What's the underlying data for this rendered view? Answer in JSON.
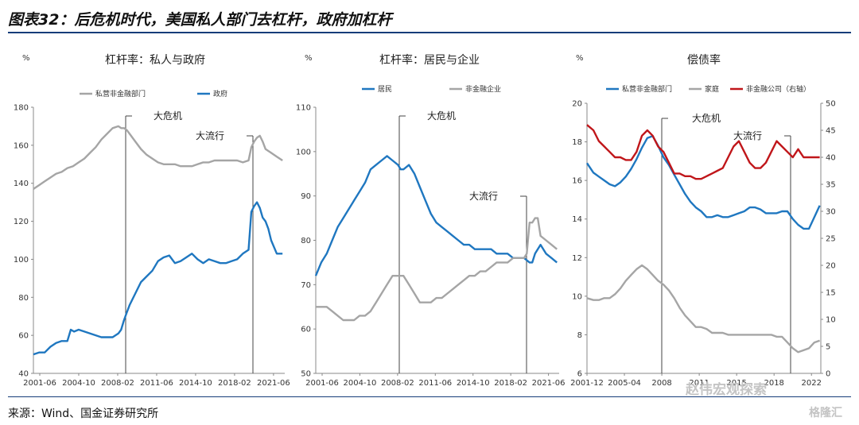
{
  "header": {
    "title": "图表32：后危机时代，美国私人部门去杠杆，政府加杠杆"
  },
  "footer": {
    "source": "来源：Wind、国金证券研究所"
  },
  "watermark": {
    "text1": "赵伟宏观探索",
    "text2": "格隆汇"
  },
  "colors": {
    "blue": "#1f77c0",
    "gray": "#a5a5a5",
    "red": "#c0161a",
    "rule": "#163d7a"
  },
  "chart_data": [
    {
      "type": "line",
      "title": "杠杆率：私人与政府",
      "unit": "%",
      "ylim": [
        40,
        180
      ],
      "yticks": [
        40,
        60,
        80,
        100,
        120,
        140,
        160,
        180
      ],
      "xticks": [
        "2001-06",
        "2004-10",
        "2008-02",
        "2011-06",
        "2014-10",
        "2018-02",
        "2021-06"
      ],
      "xlim": [
        2001.0,
        2023.2
      ],
      "legend_position": "top",
      "annotations": [
        {
          "text": "大危机",
          "x": 2008.6
        },
        {
          "text": "大流行",
          "x": 2020.1
        }
      ],
      "series": [
        {
          "name": "私营非金融部门",
          "color": "#a5a5a5",
          "x": [
            2001.0,
            2001.5,
            2002.0,
            2002.5,
            2003.0,
            2003.5,
            2004.0,
            2004.5,
            2005.0,
            2005.5,
            2006.0,
            2006.5,
            2007.0,
            2007.5,
            2008.0,
            2008.5,
            2008.75,
            2009.0,
            2009.25,
            2009.5,
            2010.0,
            2010.5,
            2011.0,
            2011.5,
            2012.0,
            2012.5,
            2013.0,
            2013.5,
            2014.0,
            2014.5,
            2015.0,
            2015.5,
            2016.0,
            2016.5,
            2017.0,
            2017.5,
            2018.0,
            2018.5,
            2019.0,
            2019.5,
            2020.0,
            2020.25,
            2020.5,
            2020.75,
            2021.0,
            2021.25,
            2021.5,
            2022.0,
            2022.5,
            2023.0
          ],
          "y": [
            137,
            139,
            141,
            143,
            145,
            146,
            148,
            149,
            151,
            153,
            156,
            159,
            163,
            166,
            169,
            170,
            169,
            169,
            168,
            166,
            162,
            158,
            155,
            153,
            151,
            150,
            150,
            150,
            149,
            149,
            149,
            150,
            151,
            151,
            152,
            152,
            152,
            152,
            152,
            151,
            152,
            159,
            162,
            164,
            165,
            162,
            158,
            156,
            154,
            152
          ]
        },
        {
          "name": "政府",
          "color": "#1f77c0",
          "x": [
            2001.0,
            2001.5,
            2002.0,
            2002.5,
            2003.0,
            2003.5,
            2004.0,
            2004.3,
            2004.6,
            2005.0,
            2005.5,
            2006.0,
            2006.5,
            2007.0,
            2007.5,
            2008.0,
            2008.5,
            2008.75,
            2009.0,
            2009.25,
            2009.5,
            2010.0,
            2010.5,
            2011.0,
            2011.5,
            2012.0,
            2012.5,
            2013.0,
            2013.5,
            2014.0,
            2014.5,
            2015.0,
            2015.5,
            2016.0,
            2016.5,
            2017.0,
            2017.5,
            2018.0,
            2018.5,
            2019.0,
            2019.5,
            2020.0,
            2020.25,
            2020.5,
            2020.75,
            2021.0,
            2021.25,
            2021.5,
            2021.75,
            2022.0,
            2022.5,
            2023.0
          ],
          "y": [
            50,
            51,
            51,
            54,
            56,
            57,
            57,
            63,
            62,
            63,
            62,
            61,
            60,
            59,
            59,
            59,
            61,
            63,
            68,
            72,
            76,
            82,
            88,
            91,
            94,
            99,
            101,
            102,
            98,
            99,
            101,
            103,
            100,
            98,
            100,
            99,
            98,
            98,
            99,
            100,
            103,
            105,
            125,
            128,
            130,
            127,
            122,
            120,
            116,
            110,
            103,
            103
          ]
        }
      ]
    },
    {
      "type": "line",
      "title": "杠杆率：居民与企业",
      "unit": "%",
      "ylim": [
        50,
        110
      ],
      "yticks": [
        50,
        60,
        70,
        80,
        90,
        100,
        110
      ],
      "xticks": [
        "2001-06",
        "2004-10",
        "2008-02",
        "2011-06",
        "2014-10",
        "2018-02",
        "2021-06"
      ],
      "xlim": [
        2001.0,
        2023.2
      ],
      "legend_position": "top",
      "annotations": [
        {
          "text": "大危机",
          "x": 2008.6
        },
        {
          "text": "大流行",
          "x": 2020.1
        }
      ],
      "series": [
        {
          "name": "居民",
          "color": "#1f77c0",
          "x": [
            2001.0,
            2001.5,
            2002.0,
            2002.5,
            2003.0,
            2003.5,
            2004.0,
            2004.5,
            2005.0,
            2005.5,
            2006.0,
            2006.5,
            2007.0,
            2007.5,
            2008.0,
            2008.5,
            2008.75,
            2009.0,
            2009.5,
            2010.0,
            2010.5,
            2011.0,
            2011.5,
            2012.0,
            2012.5,
            2013.0,
            2013.5,
            2014.0,
            2014.5,
            2015.0,
            2015.5,
            2016.0,
            2016.5,
            2017.0,
            2017.5,
            2018.0,
            2018.5,
            2019.0,
            2019.5,
            2020.0,
            2020.5,
            2020.75,
            2021.0,
            2021.25,
            2021.5,
            2022.0,
            2022.5,
            2023.0
          ],
          "y": [
            72,
            75,
            77,
            80,
            83,
            85,
            87,
            89,
            91,
            93,
            96,
            97,
            98,
            99,
            98,
            97,
            96,
            96,
            97,
            95,
            92,
            89,
            86,
            84,
            83,
            82,
            81,
            80,
            79,
            79,
            78,
            78,
            78,
            78,
            77,
            77,
            77,
            76,
            76,
            76,
            75,
            75,
            77,
            78,
            79,
            77,
            76,
            75
          ]
        },
        {
          "name": "非金融企业",
          "color": "#a5a5a5",
          "x": [
            2001.0,
            2001.5,
            2002.0,
            2002.5,
            2003.0,
            2003.5,
            2004.0,
            2004.5,
            2005.0,
            2005.5,
            2006.0,
            2006.5,
            2007.0,
            2007.5,
            2008.0,
            2008.5,
            2009.0,
            2009.5,
            2010.0,
            2010.5,
            2011.0,
            2011.5,
            2012.0,
            2012.5,
            2013.0,
            2013.5,
            2014.0,
            2014.5,
            2015.0,
            2015.5,
            2016.0,
            2016.5,
            2017.0,
            2017.5,
            2018.0,
            2018.5,
            2019.0,
            2019.5,
            2020.0,
            2020.25,
            2020.5,
            2020.75,
            2021.0,
            2021.25,
            2021.5,
            2022.0,
            2022.5,
            2023.0
          ],
          "y": [
            65,
            65,
            65,
            64,
            63,
            62,
            62,
            62,
            63,
            63,
            64,
            66,
            68,
            70,
            72,
            72,
            72,
            70,
            68,
            66,
            66,
            66,
            67,
            67,
            68,
            69,
            70,
            71,
            72,
            72,
            73,
            73,
            74,
            75,
            75,
            75,
            76,
            76,
            76,
            77,
            84,
            84,
            85,
            85,
            81,
            80,
            79,
            78
          ]
        }
      ]
    },
    {
      "type": "line",
      "title": "偿债率",
      "unit": "%",
      "ylim": [
        6,
        20
      ],
      "yticks": [
        6,
        8,
        10,
        12,
        14,
        16,
        18,
        20
      ],
      "ylim_right": [
        0,
        50
      ],
      "yticks_right": [
        0,
        5,
        10,
        15,
        20,
        25,
        30,
        35,
        40,
        45,
        50
      ],
      "xticks": [
        "2001-12",
        "2005-04",
        "2008",
        "2011",
        "2015",
        "2018",
        "2022"
      ],
      "xlim": [
        2001.9,
        2023.6
      ],
      "legend_position": "top",
      "annotations": [
        {
          "text": "大危机",
          "x": 2008.6
        },
        {
          "text": "大流行",
          "x": 2020.1
        }
      ],
      "series": [
        {
          "name": "私营非金融部门",
          "color": "#1f77c0",
          "axis": "left",
          "x": [
            2001.9,
            2002.5,
            2003.0,
            2003.5,
            2004.0,
            2004.5,
            2005.0,
            2005.5,
            2006.0,
            2006.5,
            2007.0,
            2007.5,
            2008.0,
            2008.5,
            2009.0,
            2009.5,
            2010.0,
            2010.5,
            2011.0,
            2011.5,
            2012.0,
            2012.5,
            2013.0,
            2013.5,
            2014.0,
            2014.5,
            2015.0,
            2015.5,
            2016.0,
            2016.5,
            2017.0,
            2017.5,
            2018.0,
            2018.5,
            2019.0,
            2019.5,
            2020.0,
            2020.5,
            2021.0,
            2021.5,
            2022.0,
            2022.5,
            2023.0,
            2023.5
          ],
          "y": [
            16.9,
            16.4,
            16.2,
            16.0,
            15.8,
            15.7,
            15.9,
            16.2,
            16.6,
            17.1,
            17.7,
            18.2,
            18.3,
            17.8,
            17.2,
            16.8,
            16.3,
            15.8,
            15.3,
            14.9,
            14.6,
            14.4,
            14.1,
            14.1,
            14.2,
            14.1,
            14.1,
            14.2,
            14.3,
            14.4,
            14.6,
            14.6,
            14.5,
            14.3,
            14.3,
            14.3,
            14.4,
            14.4,
            14.0,
            13.7,
            13.5,
            13.5,
            14.1,
            14.7
          ]
        },
        {
          "name": "家庭",
          "color": "#a5a5a5",
          "axis": "left",
          "x": [
            2001.9,
            2002.5,
            2003.0,
            2003.5,
            2004.0,
            2004.5,
            2005.0,
            2005.5,
            2006.0,
            2006.5,
            2007.0,
            2007.5,
            2008.0,
            2008.5,
            2009.0,
            2009.5,
            2010.0,
            2010.5,
            2011.0,
            2011.5,
            2012.0,
            2012.5,
            2013.0,
            2013.5,
            2014.0,
            2014.5,
            2015.0,
            2015.5,
            2016.0,
            2016.5,
            2017.0,
            2017.5,
            2018.0,
            2018.5,
            2019.0,
            2019.5,
            2020.0,
            2020.5,
            2021.0,
            2021.5,
            2022.0,
            2022.5,
            2023.0,
            2023.5
          ],
          "y": [
            9.9,
            9.8,
            9.8,
            9.9,
            9.9,
            10.1,
            10.4,
            10.8,
            11.1,
            11.4,
            11.6,
            11.4,
            11.1,
            10.8,
            10.6,
            10.3,
            9.9,
            9.4,
            9.0,
            8.7,
            8.4,
            8.4,
            8.3,
            8.1,
            8.1,
            8.1,
            8.0,
            8.0,
            8.0,
            8.0,
            8.0,
            8.0,
            8.0,
            8.0,
            8.0,
            7.9,
            7.9,
            7.6,
            7.3,
            7.1,
            7.2,
            7.3,
            7.6,
            7.7
          ]
        },
        {
          "name": "非金融公司（右轴）",
          "color": "#c0161a",
          "axis": "right",
          "x": [
            2001.9,
            2002.5,
            2003.0,
            2003.5,
            2004.0,
            2004.5,
            2005.0,
            2005.5,
            2006.0,
            2006.5,
            2007.0,
            2007.5,
            2008.0,
            2008.5,
            2009.0,
            2009.5,
            2010.0,
            2010.5,
            2011.0,
            2011.5,
            2012.0,
            2012.5,
            2013.0,
            2013.5,
            2014.0,
            2014.5,
            2015.0,
            2015.5,
            2016.0,
            2016.5,
            2017.0,
            2017.5,
            2018.0,
            2018.5,
            2019.0,
            2019.5,
            2020.0,
            2020.5,
            2021.0,
            2021.5,
            2022.0,
            2022.5,
            2023.0,
            2023.5
          ],
          "y": [
            46,
            45,
            43,
            42,
            41,
            40,
            40,
            39.5,
            39.5,
            41,
            44,
            45,
            44,
            42,
            41,
            39,
            37,
            37,
            36.5,
            36.5,
            36,
            36,
            36.5,
            37,
            37.5,
            38,
            40,
            42,
            43,
            41,
            39,
            38,
            38,
            39,
            41,
            43,
            42,
            41,
            40,
            41.5,
            40,
            40,
            40,
            40
          ]
        }
      ]
    }
  ]
}
